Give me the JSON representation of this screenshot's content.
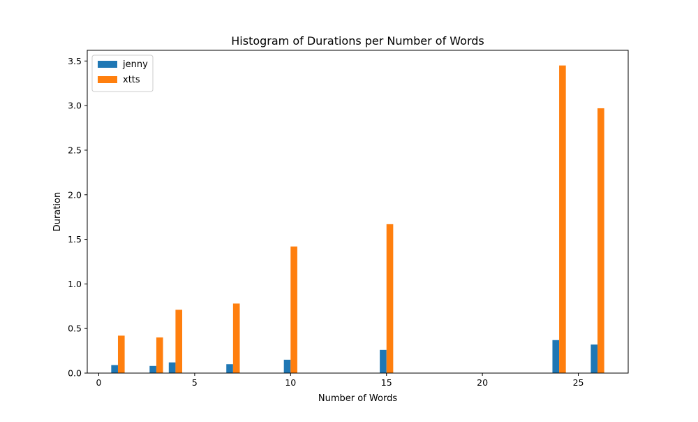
{
  "chart_data": {
    "type": "bar",
    "title": "Histogram of Durations per Number of Words",
    "xlabel": "Number of Words",
    "ylabel": "Duration",
    "xlim": [
      -0.6,
      27.6
    ],
    "ylim": [
      0,
      3.62
    ],
    "xticks": [
      0,
      5,
      10,
      15,
      20,
      25
    ],
    "yticks": [
      0.0,
      0.5,
      1.0,
      1.5,
      2.0,
      2.5,
      3.0,
      3.5
    ],
    "grid": false,
    "legend_position": "top-left",
    "bar_width": 0.35,
    "x": [
      1,
      3,
      4,
      7,
      10,
      15,
      24,
      26
    ],
    "series": [
      {
        "name": "jenny",
        "color": "#1f77b4",
        "offset": -0.175,
        "values": [
          0.09,
          0.08,
          0.12,
          0.1,
          0.15,
          0.26,
          0.37,
          0.32
        ]
      },
      {
        "name": "xtts",
        "color": "#ff7f0e",
        "offset": 0.175,
        "values": [
          0.42,
          0.4,
          0.71,
          0.78,
          1.42,
          1.67,
          3.45,
          2.97
        ]
      }
    ]
  }
}
